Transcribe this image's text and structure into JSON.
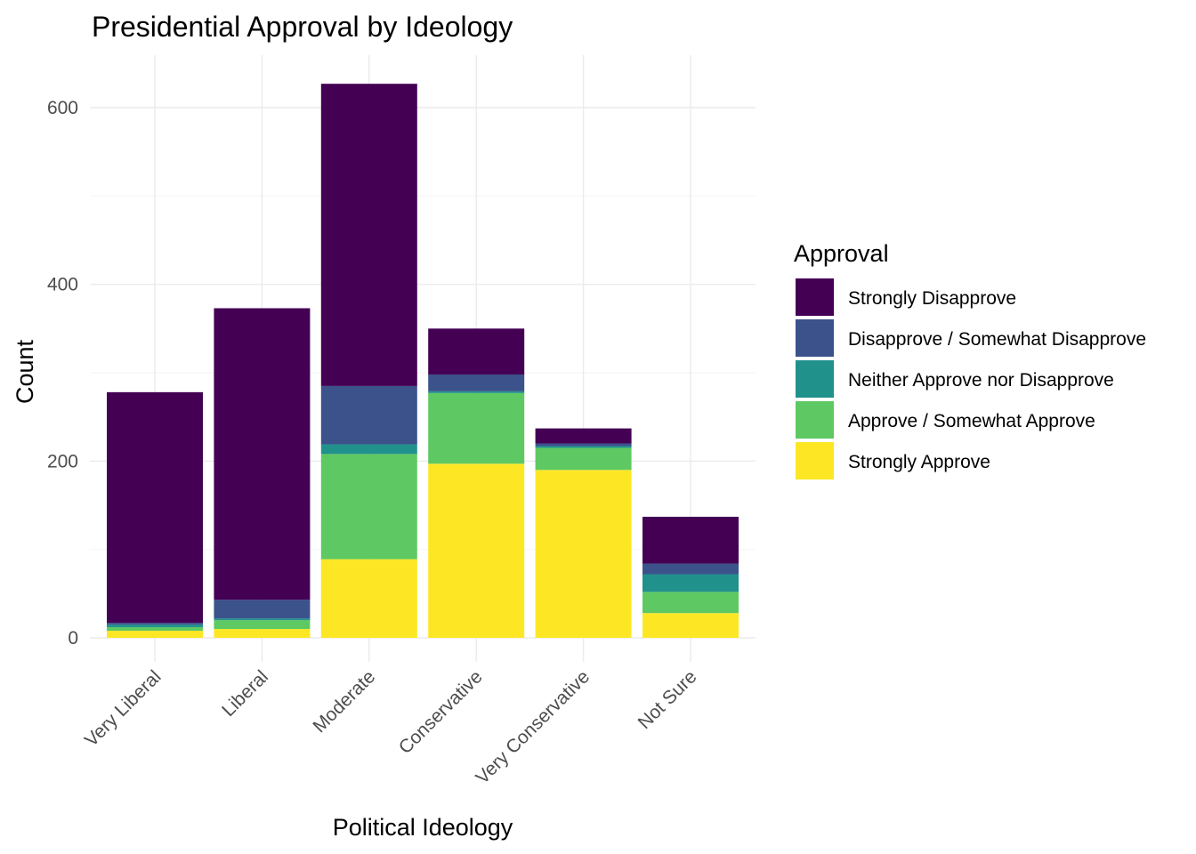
{
  "chart_data": {
    "type": "bar",
    "stacked": true,
    "title": "Presidential Approval by Ideology",
    "xlabel": "Political Ideology",
    "ylabel": "Count",
    "categories": [
      "Very Liberal",
      "Liberal",
      "Moderate",
      "Conservative",
      "Very Conservative",
      "Not Sure"
    ],
    "ylim": [
      0,
      650
    ],
    "yticks": [
      0,
      200,
      400,
      600
    ],
    "grid": true,
    "legend": {
      "title": "Approval",
      "placement": "right"
    },
    "series": [
      {
        "name": "Strongly Approve",
        "color": "#fde725",
        "values": [
          8,
          10,
          89,
          197,
          190,
          28
        ]
      },
      {
        "name": "Approve / Somewhat Approve",
        "color": "#5ec962",
        "values": [
          4,
          10,
          119,
          80,
          25,
          24
        ]
      },
      {
        "name": "Neither Approve nor Disapprove",
        "color": "#21918c",
        "values": [
          3,
          2,
          11,
          2,
          2,
          20
        ]
      },
      {
        "name": "Disapprove / Somewhat Disapprove",
        "color": "#3b528b",
        "values": [
          2,
          21,
          66,
          19,
          3,
          12
        ]
      },
      {
        "name": "Strongly Disapprove",
        "color": "#440154",
        "values": [
          261,
          330,
          342,
          52,
          17,
          53
        ]
      }
    ]
  }
}
